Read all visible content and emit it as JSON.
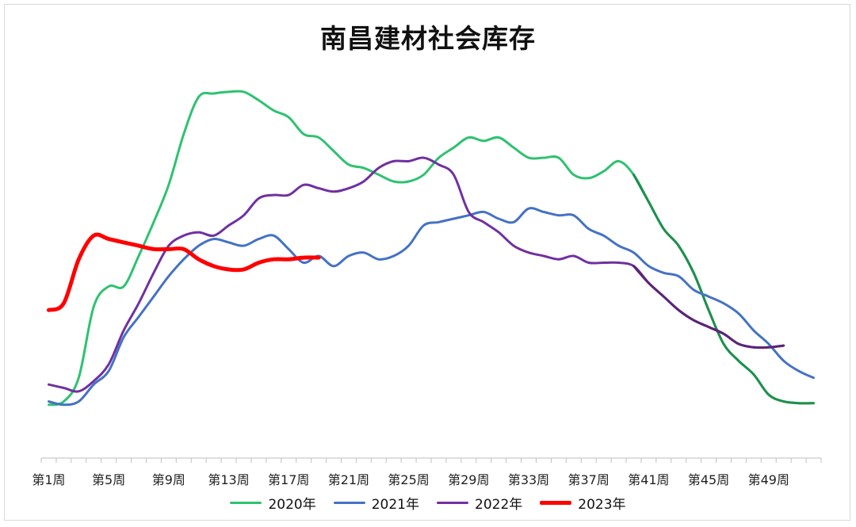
{
  "chart_data": {
    "type": "line",
    "title": "南昌建材社会库存",
    "x_tick_labels": [
      "第1周",
      "第5周",
      "第9周",
      "第13周",
      "第17周",
      "第21周",
      "第25周",
      "第29周",
      "第33周",
      "第37周",
      "第41周",
      "第45周",
      "第49周"
    ],
    "x_range": [
      1,
      52
    ],
    "ylim": [
      0,
      100
    ],
    "grid": false,
    "legend_position": "bottom",
    "series": [
      {
        "name": "2020年",
        "color": "#2ec270",
        "late_color": "#1f8f4e",
        "width": 3,
        "x": [
          1,
          2,
          3,
          4,
          5,
          6,
          7,
          8,
          9,
          10,
          11,
          12,
          13,
          14,
          15,
          16,
          17,
          18,
          19,
          20,
          21,
          22,
          23,
          24,
          25,
          26,
          27,
          28,
          29,
          30,
          31,
          32,
          33,
          34,
          35,
          36,
          37,
          38,
          39,
          40,
          41,
          42,
          43,
          44,
          45,
          46,
          47,
          48,
          49,
          50,
          51,
          52
        ],
        "values": [
          8,
          9,
          16,
          37,
          43,
          43,
          52,
          62,
          73,
          88,
          99,
          100,
          100.5,
          100.5,
          98,
          95,
          93,
          88,
          87,
          83,
          79,
          78,
          76,
          74,
          74,
          76,
          81,
          84,
          87,
          86,
          87,
          84,
          81,
          81,
          81,
          76,
          75,
          77,
          80,
          76,
          68,
          60,
          55,
          47,
          36,
          26,
          21,
          17,
          11,
          9,
          8.5,
          8.5
        ]
      },
      {
        "name": "2021年",
        "color": "#4472c4",
        "width": 3,
        "x": [
          1,
          2,
          3,
          4,
          5,
          6,
          7,
          8,
          9,
          10,
          11,
          12,
          13,
          14,
          15,
          16,
          17,
          18,
          19,
          20,
          21,
          22,
          23,
          24,
          25,
          26,
          27,
          28,
          29,
          30,
          31,
          32,
          33,
          34,
          35,
          36,
          37,
          38,
          39,
          40,
          41,
          42,
          43,
          44,
          45,
          46,
          47,
          48,
          49,
          50,
          51,
          52
        ],
        "values": [
          9,
          8,
          9,
          14,
          18,
          28,
          34,
          40,
          46,
          51,
          55,
          57,
          56,
          55,
          57,
          58,
          54,
          50,
          52,
          49,
          52,
          53,
          51,
          52,
          55,
          61,
          62,
          63,
          64,
          65,
          63,
          62,
          66,
          65,
          64,
          64,
          60,
          58,
          55,
          53,
          49,
          47,
          46,
          42,
          40,
          38,
          35,
          30,
          26,
          21,
          18,
          16
        ]
      },
      {
        "name": "2022年",
        "color": "#7030a0",
        "late_color": "#5a2575",
        "width": 3,
        "x": [
          1,
          2,
          3,
          4,
          5,
          6,
          7,
          8,
          9,
          10,
          11,
          12,
          13,
          14,
          15,
          16,
          17,
          18,
          19,
          20,
          21,
          22,
          23,
          24,
          25,
          26,
          27,
          28,
          29,
          30,
          31,
          32,
          33,
          34,
          35,
          36,
          37,
          38,
          39,
          40,
          41,
          42,
          43,
          44,
          45,
          46,
          47,
          48,
          49,
          50
        ],
        "values": [
          14,
          13,
          12,
          15,
          20,
          30,
          38,
          47,
          55,
          58,
          59,
          58,
          61,
          64,
          69,
          70,
          70,
          73,
          72,
          71,
          72,
          74,
          78,
          80,
          80,
          81,
          79,
          76,
          65,
          62,
          59,
          55,
          53,
          52,
          51,
          52,
          50,
          50,
          50,
          49,
          44,
          40,
          36,
          33,
          31,
          29,
          26,
          25,
          25,
          25.5
        ]
      },
      {
        "name": "2023年",
        "color": "#ff0000",
        "width": 5,
        "x": [
          1,
          2,
          3,
          4,
          5,
          6,
          7,
          8,
          9,
          10,
          11,
          12,
          13,
          14,
          15,
          16,
          17,
          18,
          19
        ],
        "values": [
          36,
          38,
          51,
          58,
          57,
          56,
          55,
          54,
          54,
          54,
          51,
          49,
          48,
          48,
          50,
          51,
          51,
          51.5,
          51.5
        ]
      }
    ]
  }
}
